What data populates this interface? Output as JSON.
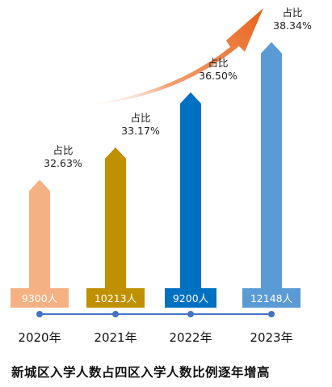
{
  "chart_data": {
    "type": "bar",
    "title": "新城区入学人数占四区入学人数比例逐年增高",
    "categories": [
      "2020年",
      "2021年",
      "2022年",
      "2023年"
    ],
    "ratio_prefix": "占比",
    "ratios": [
      "32.63%",
      "33.17%",
      "36.50%",
      "38.34%"
    ],
    "values": [
      32.63,
      33.17,
      36.5,
      38.34
    ],
    "counts": [
      "9300人",
      "10213人",
      "9200人",
      "12148人"
    ],
    "colors": [
      "#f4b183",
      "#bf9000",
      "#0070c0",
      "#5b9bd5"
    ],
    "trend_arrow_color": "#e8621a",
    "timeline_color": "#4472c4",
    "grid": false
  }
}
